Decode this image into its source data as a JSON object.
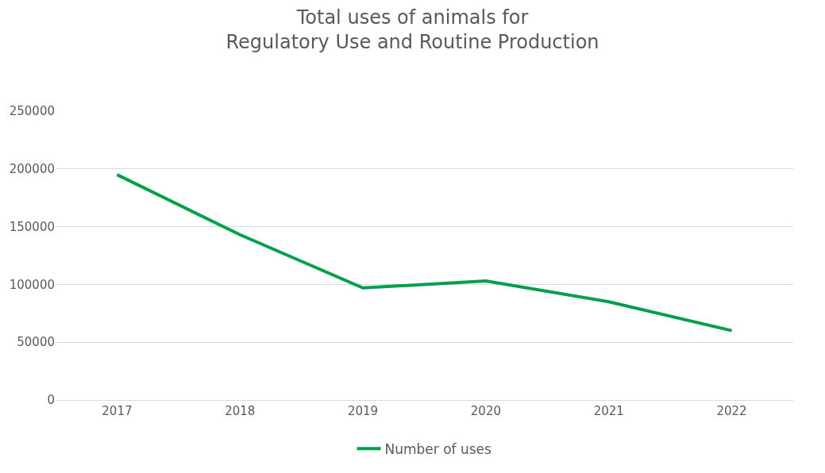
{
  "chart_data": {
    "type": "line",
    "title": "Total uses of animals for\nRegulatory Use and Routine Production",
    "categories": [
      "2017",
      "2018",
      "2019",
      "2020",
      "2021",
      "2022"
    ],
    "series": [
      {
        "name": "Number of uses",
        "color": "#00a04a",
        "values": [
          195000,
          143000,
          97000,
          103000,
          85000,
          60000
        ]
      }
    ],
    "ylim": [
      0,
      250000
    ],
    "yticks": [
      0,
      50000,
      100000,
      150000,
      200000,
      250000
    ],
    "grid": "y",
    "legend": "bottom",
    "marker": "none",
    "line_style": "solid"
  }
}
